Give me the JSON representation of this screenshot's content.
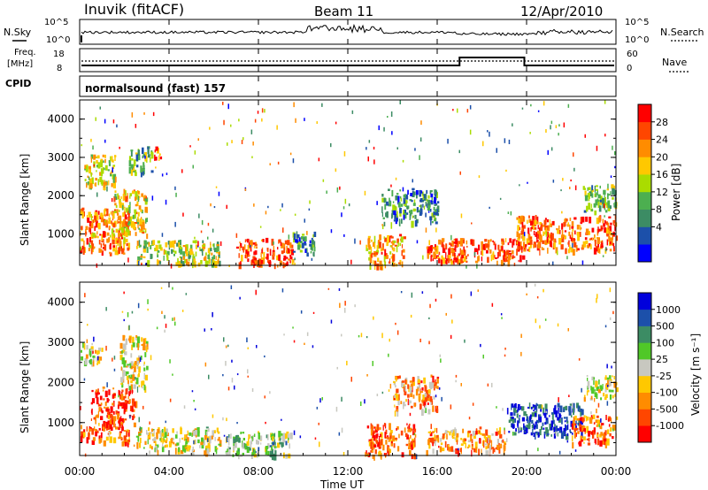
{
  "header": {
    "station": "Inuvik (fitACF)",
    "beam": "Beam 11",
    "date": "12/Apr/2010"
  },
  "panels": {
    "nsky": {
      "left_label": "N.Sky",
      "right_label": "N.Search",
      "left_ticks": [
        "10^5",
        "10^0"
      ],
      "right_ticks": [
        "10^5",
        "10^0"
      ]
    },
    "freq": {
      "left_label_line1": "Freq.",
      "left_label_line2": "[MHz]",
      "right_label": "Nave",
      "left_ticks": [
        "18",
        "8"
      ],
      "right_ticks": [
        "60",
        "0"
      ]
    },
    "cpid": {
      "label": "CPID",
      "text": "normalsound (fast) 157"
    }
  },
  "chart_data": [
    {
      "type": "heatmap",
      "name": "Power",
      "ylabel": "Slant Range [km]",
      "colorbar_label": "Power [dB]",
      "colorbar_ticks": [
        "28",
        "24",
        "20",
        "16",
        "12",
        "8",
        "4"
      ],
      "colors": [
        "#0000ff",
        "#1c50aa",
        "#3c8c64",
        "#4caf50",
        "#aadc00",
        "#ffc800",
        "#ff8c00",
        "#ff4600",
        "#ff0000"
      ],
      "ylim": [
        180,
        4500
      ],
      "yticks": [
        "4000",
        "3000",
        "2000",
        "1000"
      ],
      "echo_regions": [
        {
          "t0": 0.0,
          "t1": 2.2,
          "r0": 500,
          "r1": 1700,
          "level": 0.75
        },
        {
          "t0": 0.2,
          "t1": 1.6,
          "r0": 2300,
          "r1": 3100,
          "level": 0.55
        },
        {
          "t0": 1.5,
          "t1": 3.0,
          "r0": 1000,
          "r1": 2200,
          "level": 0.6
        },
        {
          "t0": 2.2,
          "t1": 3.2,
          "r0": 2600,
          "r1": 3300,
          "level": 0.4
        },
        {
          "t0": 3.2,
          "t1": 3.6,
          "r0": 3000,
          "r1": 3300,
          "level": 0.8
        },
        {
          "t0": 2.5,
          "t1": 6.3,
          "r0": 250,
          "r1": 850,
          "level": 0.5
        },
        {
          "t0": 7.0,
          "t1": 9.5,
          "r0": 200,
          "r1": 900,
          "level": 0.85
        },
        {
          "t0": 9.5,
          "t1": 10.5,
          "r0": 500,
          "r1": 1100,
          "level": 0.3
        },
        {
          "t0": 12.8,
          "t1": 14.5,
          "r0": 200,
          "r1": 1000,
          "level": 0.7
        },
        {
          "t0": 13.5,
          "t1": 16.0,
          "r0": 1300,
          "r1": 2200,
          "level": 0.3
        },
        {
          "t0": 15.5,
          "t1": 20.0,
          "r0": 300,
          "r1": 900,
          "level": 0.85
        },
        {
          "t0": 19.5,
          "t1": 24.0,
          "r0": 600,
          "r1": 1500,
          "level": 0.8
        },
        {
          "t0": 22.5,
          "t1": 24.0,
          "r0": 1600,
          "r1": 2300,
          "level": 0.4
        }
      ]
    },
    {
      "type": "heatmap",
      "name": "Velocity",
      "ylabel": "Slant Range [km]",
      "colorbar_label": "Velocity [m s⁻¹]",
      "colorbar_ticks": [
        "1000",
        "500",
        "100",
        "25",
        "-25",
        "-100",
        "-500",
        "-1000"
      ],
      "colors": [
        "#ff0000",
        "#ff4600",
        "#ff8c00",
        "#ffc800",
        "#c8c8c0",
        "#50c828",
        "#3c8c64",
        "#1c50aa",
        "#0000dc"
      ],
      "ylim": [
        180,
        4500
      ],
      "yticks": [
        "4000",
        "3000",
        "2000",
        "1000"
      ],
      "echo_regions": [
        {
          "t0": 0.0,
          "t1": 2.2,
          "r0": 500,
          "r1": 1000,
          "level": 0.2
        },
        {
          "t0": 0.5,
          "t1": 2.5,
          "r0": 1000,
          "r1": 1900,
          "level": 0.1
        },
        {
          "t0": 0.0,
          "t1": 1.0,
          "r0": 2500,
          "r1": 3000,
          "level": 0.45
        },
        {
          "t0": 1.8,
          "t1": 3.0,
          "r0": 1900,
          "r1": 3200,
          "level": 0.45
        },
        {
          "t0": 2.5,
          "t1": 6.3,
          "r0": 300,
          "r1": 900,
          "level": 0.45
        },
        {
          "t0": 6.5,
          "t1": 9.5,
          "r0": 200,
          "r1": 800,
          "level": 0.6
        },
        {
          "t0": 12.8,
          "t1": 15.0,
          "r0": 200,
          "r1": 1000,
          "level": 0.2
        },
        {
          "t0": 14.0,
          "t1": 16.0,
          "r0": 1300,
          "r1": 2200,
          "level": 0.3
        },
        {
          "t0": 15.5,
          "t1": 19.0,
          "r0": 300,
          "r1": 900,
          "level": 0.3
        },
        {
          "t0": 19.0,
          "t1": 22.5,
          "r0": 700,
          "r1": 1500,
          "level": 0.9
        },
        {
          "t0": 22.0,
          "t1": 24.0,
          "r0": 500,
          "r1": 1200,
          "level": 0.2
        },
        {
          "t0": 22.5,
          "t1": 24.0,
          "r0": 1600,
          "r1": 2200,
          "level": 0.45
        }
      ]
    }
  ],
  "time_axis": {
    "xlabel": "Time UT",
    "ticks": [
      "00:00",
      "04:00",
      "08:00",
      "12:00",
      "16:00",
      "20:00",
      "00:00"
    ],
    "xlim": [
      0,
      24
    ]
  }
}
